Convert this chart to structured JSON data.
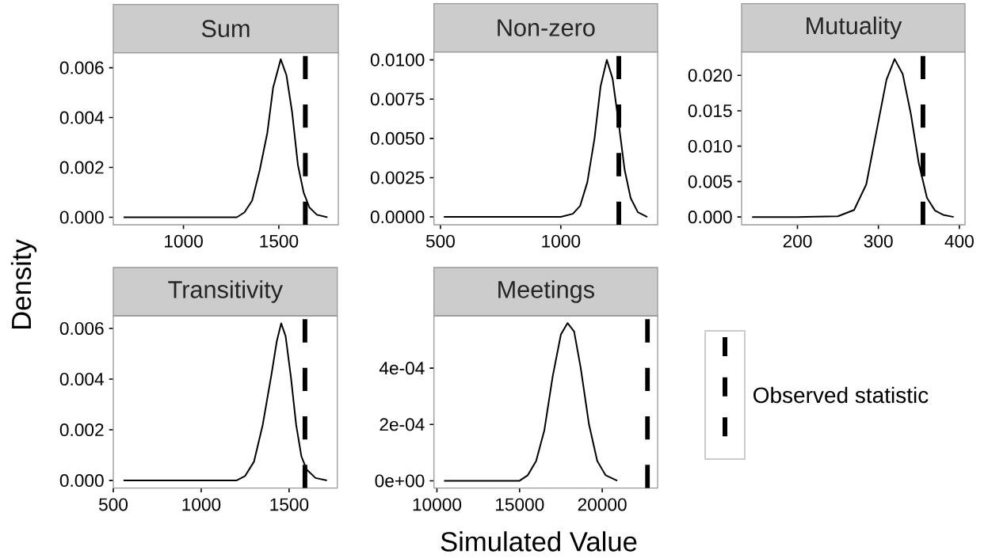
{
  "chart_data": [
    {
      "type": "line",
      "title": "Sum",
      "color": "#000000",
      "grid": false,
      "x": [
        686,
        800,
        1000,
        1200,
        1280,
        1320,
        1360,
        1400,
        1440,
        1470,
        1510,
        1540,
        1570,
        1600,
        1630,
        1660,
        1700,
        1755
      ],
      "values": [
        0,
        0,
        0,
        0,
        0,
        0.0002,
        0.00067,
        0.0019,
        0.0034,
        0.0052,
        0.00634,
        0.0057,
        0.0042,
        0.0021,
        0.001,
        0.0004,
        0.0001,
        0
      ],
      "xlim": [
        632,
        1812
      ],
      "ylim": [
        -0.0003,
        0.0066
      ],
      "xticks": [
        1000,
        1500
      ],
      "yticks": [
        {
          "value": 0,
          "label": "0.000"
        },
        0.002,
        0.004,
        0.006
      ],
      "ref_lines": [
        {
          "axis": "x",
          "value": 1639,
          "color": "#000000",
          "line_style": "dashed"
        }
      ]
    },
    {
      "type": "line",
      "title": "Non-zero",
      "color": "#000000",
      "grid": false,
      "x": [
        514,
        700,
        900,
        1000,
        1050,
        1080,
        1110,
        1140,
        1165,
        1191,
        1215,
        1240,
        1265,
        1290,
        1320,
        1359
      ],
      "values": [
        0,
        0,
        0,
        0,
        0.0002,
        0.0007,
        0.0022,
        0.005,
        0.0083,
        0.01,
        0.0088,
        0.006,
        0.003,
        0.0012,
        0.0003,
        0
      ],
      "xlim": [
        473,
        1402
      ],
      "ylim": [
        -0.0005,
        0.0105
      ],
      "xticks": [
        500,
        1000
      ],
      "yticks": [
        {
          "value": 0,
          "label": "0.0000"
        },
        0.0025,
        {
          "value": 0.005,
          "label": "0.0050"
        },
        0.0075,
        {
          "value": 0.01,
          "label": "0.0100"
        }
      ],
      "ref_lines": [
        {
          "axis": "x",
          "value": 1241,
          "color": "#000000",
          "line_style": "dashed"
        }
      ]
    },
    {
      "type": "line",
      "title": "Mutuality",
      "color": "#000000",
      "grid": false,
      "x": [
        144,
        200,
        250,
        270,
        285,
        300,
        310,
        320,
        330,
        340,
        350,
        360,
        370,
        380,
        393
      ],
      "values": [
        0,
        0,
        0.0001,
        0.001,
        0.0046,
        0.0135,
        0.0194,
        0.0223,
        0.0202,
        0.0146,
        0.0075,
        0.0027,
        0.0009,
        0.0003,
        0
      ],
      "xlim": [
        131,
        407
      ],
      "ylim": [
        -0.0011,
        0.0233
      ],
      "xticks": [
        200,
        300,
        400
      ],
      "yticks": [
        {
          "value": 0,
          "label": "0.000"
        },
        0.005,
        {
          "value": 0.01,
          "label": "0.010"
        },
        0.015,
        {
          "value": 0.02,
          "label": "0.020"
        }
      ],
      "ref_lines": [
        {
          "axis": "x",
          "value": 355,
          "color": "#000000",
          "line_style": "dashed"
        }
      ]
    },
    {
      "type": "line",
      "title": "Transitivity",
      "ylabel": "Density",
      "color": "#000000",
      "grid": false,
      "x": [
        558,
        800,
        1100,
        1200,
        1250,
        1300,
        1350,
        1400,
        1430,
        1455,
        1480,
        1510,
        1540,
        1570,
        1600,
        1650,
        1715
      ],
      "values": [
        0,
        0,
        0,
        0,
        0.00018,
        0.00074,
        0.0022,
        0.0042,
        0.0055,
        0.0062,
        0.0057,
        0.0041,
        0.0022,
        0.00095,
        0.00043,
        0.0001,
        0
      ],
      "xlim": [
        500,
        1774
      ],
      "ylim": [
        -0.0003,
        0.0065
      ],
      "xticks": [
        500,
        1000,
        1500
      ],
      "yticks": [
        {
          "value": 0,
          "label": "0.000"
        },
        0.002,
        0.004,
        0.006
      ],
      "ref_lines": [
        {
          "axis": "x",
          "value": 1590,
          "color": "#000000",
          "line_style": "dashed"
        }
      ]
    },
    {
      "type": "line",
      "title": "Meetings",
      "xlabel": "Simulated Value",
      "color": "#000000",
      "grid": false,
      "legend": "right",
      "x": [
        10431,
        13000,
        15000,
        15500,
        16000,
        16500,
        17000,
        17500,
        17900,
        18300,
        18700,
        19200,
        19700,
        20200,
        20909
      ],
      "values": [
        0,
        0,
        0,
        2e-05,
        7e-05,
        0.00018,
        0.00037,
        0.00052,
        0.00056,
        0.00053,
        0.0004,
        0.0002,
        7e-05,
        2e-05,
        0
      ],
      "xlim": [
        9820,
        23350
      ],
      "ylim": [
        -2.6e-05,
        0.000586
      ],
      "xticks": [
        10000,
        15000,
        20000
      ],
      "yticks": [
        {
          "value": 0,
          "label": "0e+00"
        },
        {
          "value": 0.0002,
          "label": "2e-04"
        },
        {
          "value": 0.0004,
          "label": "4e-04"
        }
      ],
      "ref_lines": [
        {
          "axis": "x",
          "value": 22742,
          "color": "#000000",
          "line_style": "dashed",
          "label": "Observed statistic"
        }
      ]
    }
  ]
}
